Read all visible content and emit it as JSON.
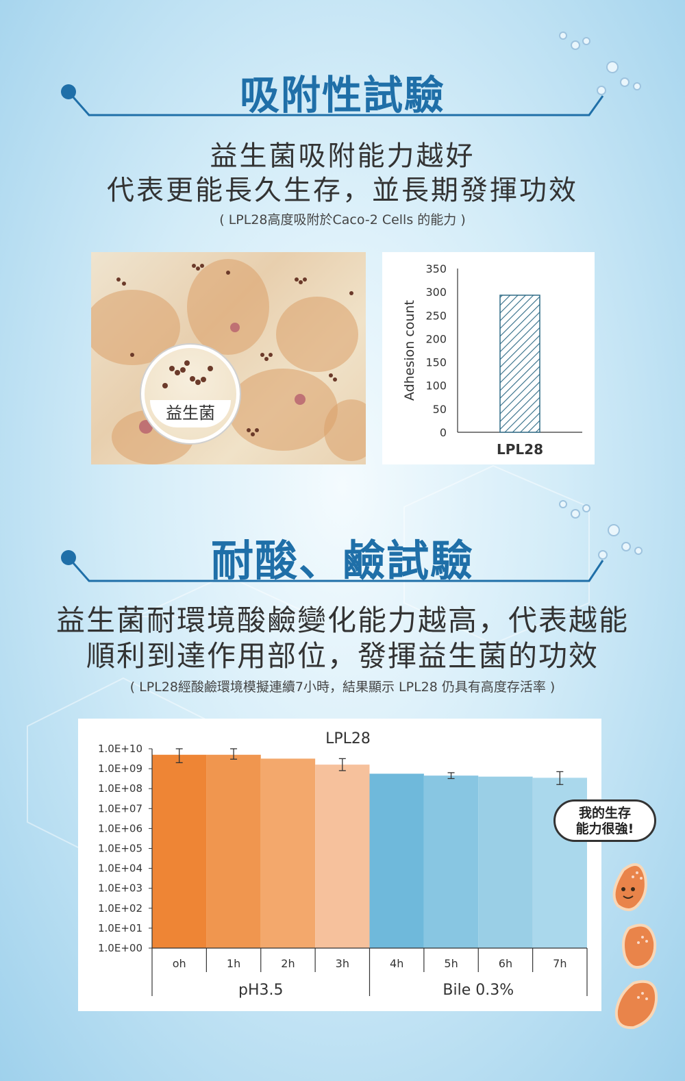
{
  "section1": {
    "title": "吸附性試驗",
    "line1": "益生菌吸附能力越好",
    "line2": "代表更能長久生存，並長期發揮功效",
    "note": "( LPL28高度吸附於Caco-2 Cells 的能力 )",
    "photo_label": "益生菌"
  },
  "section2": {
    "title": "耐酸、鹼試驗",
    "line1": "益生菌耐環境酸鹼變化能力越高，代表越能",
    "line2": "順利到達作用部位，發揮益生菌的功效",
    "note": "( LPL28經酸鹼環境模擬連續7小時，結果顯示 LPL28 仍具有高度存活率 )"
  },
  "mascot": {
    "bubble_line1": "我的生存",
    "bubble_line2": "能力很強!"
  },
  "colors": {
    "accent": "#1f6fa8",
    "orange_dark": "#ee8535",
    "blue_light": "#a9d6ea"
  },
  "chart_data": [
    {
      "type": "bar",
      "title": "",
      "categories": [
        "LPL28"
      ],
      "values": [
        293
      ],
      "ylabel": "Adhesion count",
      "ylim": [
        0,
        350
      ],
      "yticks": [
        0,
        50,
        100,
        150,
        200,
        250,
        300,
        350
      ],
      "pattern": "diagonal-hatch"
    },
    {
      "type": "bar",
      "title": "LPL28",
      "log_scale": true,
      "categories": [
        "oh",
        "1h",
        "2h",
        "3h",
        "4h",
        "5h",
        "6h",
        "7h"
      ],
      "values": [
        5000000000.0,
        5000000000.0,
        3200000000.0,
        1600000000.0,
        560000000.0,
        450000000.0,
        400000000.0,
        350000000.0
      ],
      "error_low": [
        2000000000.0,
        3000000000.0,
        3200000000.0,
        800000000.0,
        560000000.0,
        320000000.0,
        400000000.0,
        160000000.0
      ],
      "error_high": [
        10000000000.0,
        10000000000.0,
        3200000000.0,
        3200000000.0,
        560000000.0,
        630000000.0,
        400000000.0,
        710000000.0
      ],
      "yticks": [
        "1.0E+00",
        "1.0E+01",
        "1.0E+02",
        "1.0E+03",
        "1.0E+04",
        "1.0E+05",
        "1.0E+06",
        "1.0E+07",
        "1.0E+08",
        "1.0E+09",
        "1.0E+10"
      ],
      "ylim": [
        1,
        10000000000.0
      ],
      "groups": [
        {
          "label": "pH3.5",
          "categories": [
            "oh",
            "1h",
            "2h",
            "3h"
          ]
        },
        {
          "label": "Bile 0.3%",
          "categories": [
            "4h",
            "5h",
            "6h",
            "7h"
          ]
        }
      ],
      "bar_colors": [
        "#ee8535",
        "#f0964f",
        "#f3a86c",
        "#f6c19c",
        "#6fb9db",
        "#88c6e2",
        "#9acfe6",
        "#aad8ec"
      ]
    }
  ]
}
